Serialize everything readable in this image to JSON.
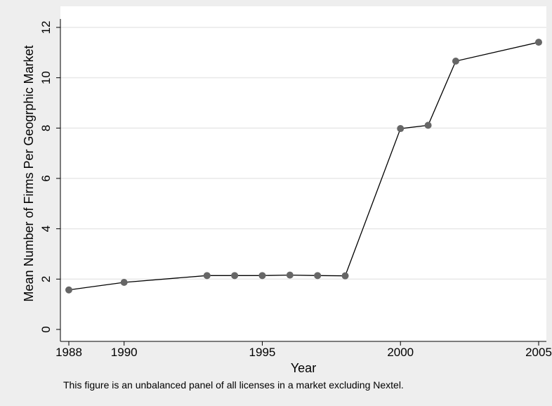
{
  "chart_data": {
    "type": "line",
    "title": "",
    "xlabel": "Year",
    "ylabel": "Mean Number of Firms Per Geogrphic Market",
    "note": "This figure is an unbalanced panel of all licenses in a market excluding Nextel.",
    "xlim": [
      1988,
      2005
    ],
    "ylim": [
      0,
      12
    ],
    "x_ticks": [
      1988,
      1990,
      1995,
      2000,
      2005
    ],
    "y_ticks": [
      0,
      2,
      4,
      6,
      8,
      10,
      12
    ],
    "grid": "horizontal",
    "legend": "none",
    "colors": {
      "background": "#eeeeee",
      "plot_area": "#ffffff",
      "gridline": "#e8e8e8",
      "line": "#000000",
      "marker": "#666666"
    },
    "series": [
      {
        "x": [
          1988,
          1990,
          1993,
          1994,
          1995,
          1996,
          1997,
          1998,
          2000,
          2001,
          2002,
          2005
        ],
        "y": [
          1.57,
          1.87,
          2.14,
          2.14,
          2.14,
          2.16,
          2.14,
          2.13,
          7.98,
          8.11,
          10.66,
          11.41
        ]
      }
    ]
  }
}
